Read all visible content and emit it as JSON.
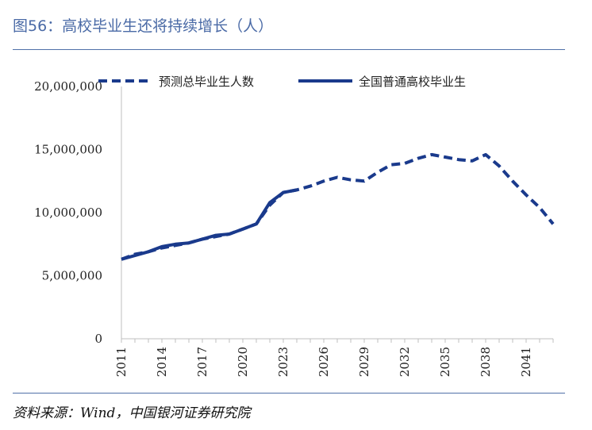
{
  "header": {
    "title": "图56：高校毕业生还将持续增长（人）"
  },
  "footer": {
    "source": "资料来源：Wind，中国银河证券研究院"
  },
  "chart_data": {
    "type": "line",
    "xlabel": "",
    "ylabel": "",
    "ylim": [
      0,
      20000000
    ],
    "yticks": [
      {
        "value": 0,
        "label": "0"
      },
      {
        "value": 5000000,
        "label": "5,000,000"
      },
      {
        "value": 10000000,
        "label": "10,000,000"
      },
      {
        "value": 15000000,
        "label": "15,000,000"
      },
      {
        "value": 20000000,
        "label": "20,000,000"
      }
    ],
    "xlim": [
      2011,
      2043
    ],
    "xticks": [
      "2011",
      "2014",
      "2017",
      "2020",
      "2023",
      "2026",
      "2029",
      "2032",
      "2035",
      "2038",
      "2041"
    ],
    "grid": false,
    "legend_position": "top",
    "series": [
      {
        "name": "预测总毕业生人数",
        "style": "dashed",
        "color": "#1a3a8c",
        "x": [
          2011,
          2012,
          2013,
          2014,
          2015,
          2016,
          2017,
          2018,
          2019,
          2020,
          2021,
          2022,
          2023,
          2024,
          2025,
          2026,
          2027,
          2028,
          2029,
          2030,
          2031,
          2032,
          2033,
          2034,
          2035,
          2036,
          2037,
          2038,
          2039,
          2040,
          2041,
          2042,
          2043
        ],
        "y": [
          6300000,
          6700000,
          6900000,
          7200000,
          7400000,
          7600000,
          7900000,
          8100000,
          8300000,
          8700000,
          9100000,
          10600000,
          11600000,
          11800000,
          12100000,
          12500000,
          12800000,
          12600000,
          12500000,
          13200000,
          13800000,
          13900000,
          14300000,
          14600000,
          14400000,
          14200000,
          14100000,
          14600000,
          13700000,
          12500000,
          11400000,
          10400000,
          9100000
        ]
      },
      {
        "name": "全国普通高校毕业生",
        "style": "solid",
        "color": "#1a3a8c",
        "x": [
          2011,
          2012,
          2013,
          2014,
          2015,
          2016,
          2017,
          2018,
          2019,
          2020,
          2021,
          2022,
          2023,
          2024
        ],
        "y": [
          6300000,
          6600000,
          6900000,
          7300000,
          7500000,
          7600000,
          7900000,
          8200000,
          8300000,
          8700000,
          9100000,
          10800000,
          11600000,
          11800000
        ]
      }
    ]
  }
}
